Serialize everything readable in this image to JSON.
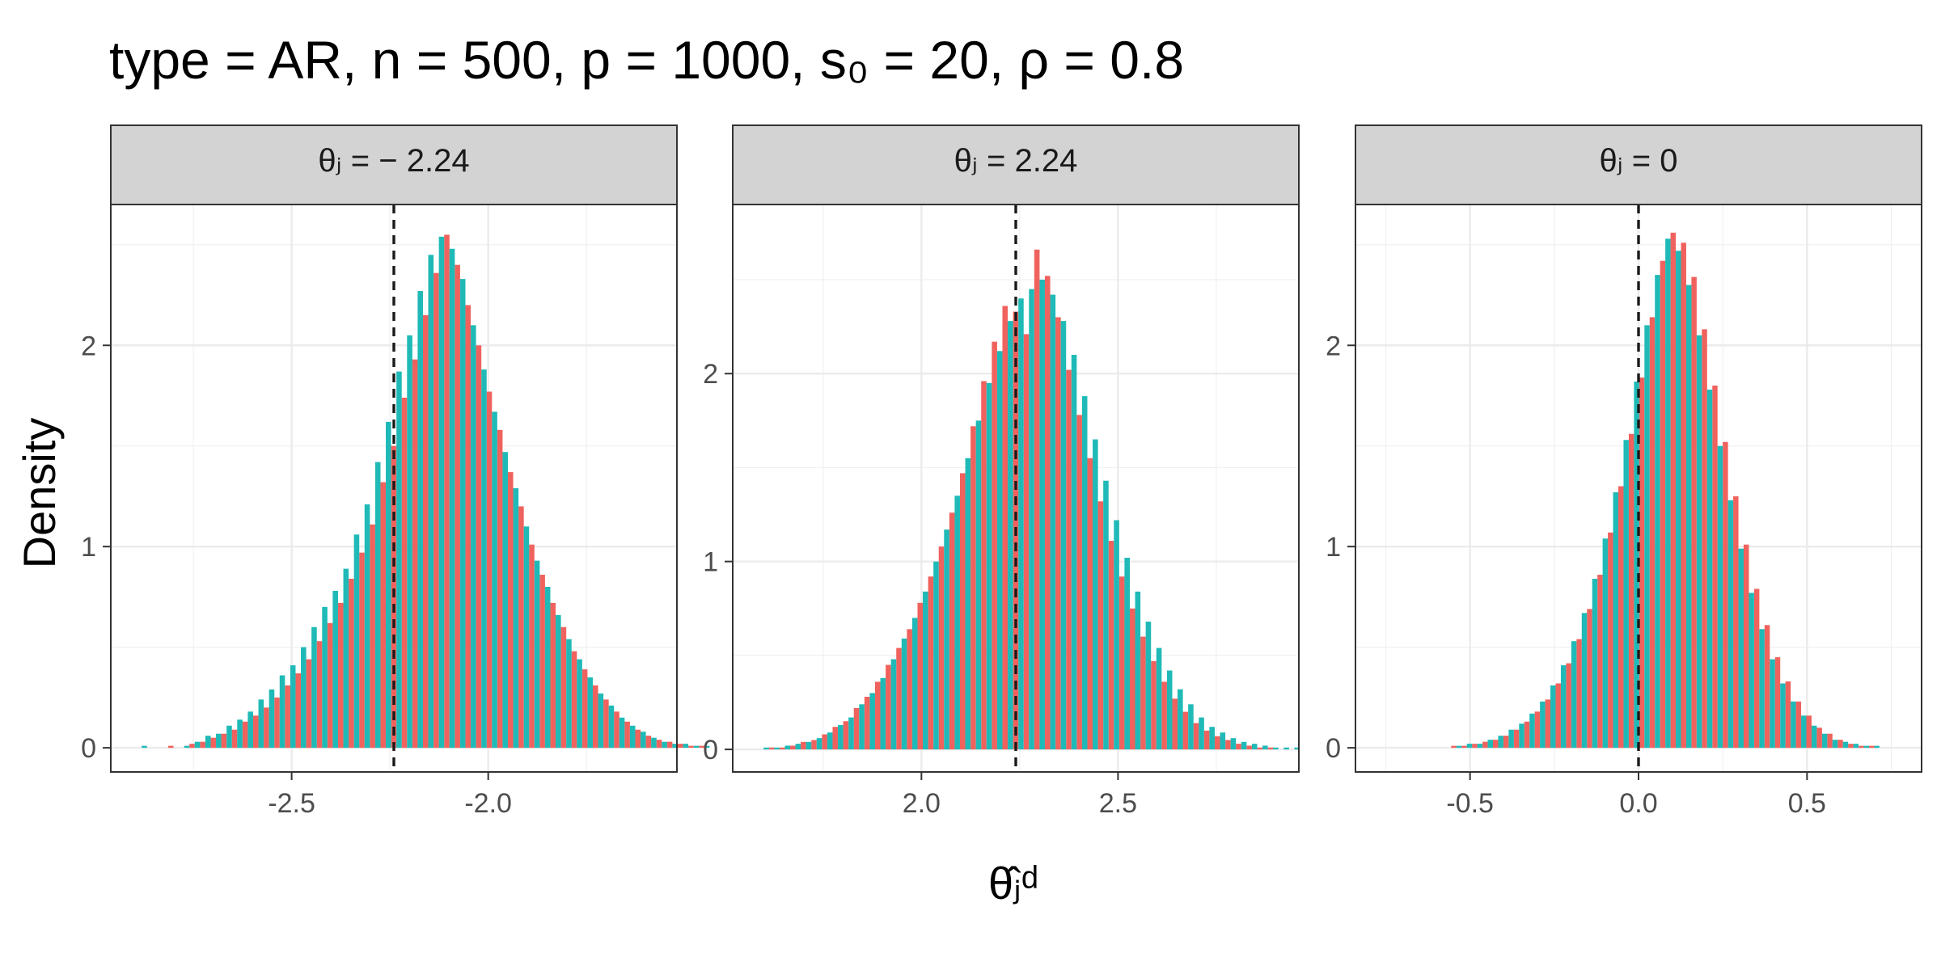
{
  "title": "type = AR, n = 500, p = 1000, s₀ = 20, ρ = 0.8",
  "xlabel": "θ̂ⱼᵈ",
  "ylabel": "Density",
  "colors": {
    "seriesA": "#F0625D",
    "seriesB": "#1FBAB7",
    "reference": "#1a1a1a",
    "strip": "#d3d3d3"
  },
  "chart_data": [
    {
      "type": "bar",
      "panel_title": "θⱼ = − 2.24",
      "reference_line": -2.24,
      "xlim": [
        -2.96,
        -1.52
      ],
      "ylim": [
        -0.12,
        2.7
      ],
      "xticks": [
        -2.5,
        -2.0
      ],
      "xtick_labels": [
        "-2.5",
        "-2.0"
      ],
      "yticks": [
        0,
        1,
        2
      ],
      "ytick_labels": [
        "0",
        "1",
        "2"
      ],
      "bin_width": 0.027,
      "x_start": -2.895,
      "series": [
        {
          "values": [
            0.0,
            0.0,
            0.0,
            0.01,
            0.0,
            0.02,
            0.03,
            0.05,
            0.07,
            0.09,
            0.13,
            0.16,
            0.2,
            0.25,
            0.31,
            0.37,
            0.44,
            0.53,
            0.62,
            0.72,
            0.84,
            0.97,
            1.11,
            1.32,
            1.5,
            1.74,
            1.93,
            2.15,
            2.36,
            2.55,
            2.4,
            2.2,
            2.0,
            1.77,
            1.58,
            1.37,
            1.2,
            1.01,
            0.86,
            0.72,
            0.6,
            0.48,
            0.39,
            0.31,
            0.24,
            0.18,
            0.13,
            0.09,
            0.06,
            0.04,
            0.03,
            0.02,
            0.01,
            0.01,
            0.0
          ]
        },
        {
          "values": [
            0.01,
            0.0,
            0.0,
            0.0,
            0.01,
            0.03,
            0.06,
            0.07,
            0.11,
            0.14,
            0.18,
            0.24,
            0.29,
            0.36,
            0.41,
            0.5,
            0.6,
            0.7,
            0.78,
            0.89,
            1.06,
            1.21,
            1.42,
            1.62,
            1.87,
            2.05,
            2.27,
            2.45,
            2.54,
            2.48,
            2.33,
            2.1,
            1.88,
            1.67,
            1.47,
            1.29,
            1.1,
            0.93,
            0.8,
            0.66,
            0.54,
            0.44,
            0.35,
            0.27,
            0.21,
            0.15,
            0.11,
            0.08,
            0.05,
            0.03,
            0.02,
            0.02,
            0.01,
            0.01,
            0.0
          ]
        }
      ]
    },
    {
      "type": "bar",
      "panel_title": "θⱼ = 2.24",
      "reference_line": 2.24,
      "xlim": [
        1.52,
        2.96
      ],
      "ylim": [
        -0.12,
        2.9
      ],
      "xticks": [
        2.0,
        2.5
      ],
      "xtick_labels": [
        "2.0",
        "2.5"
      ],
      "yticks": [
        0,
        1,
        2
      ],
      "ytick_labels": [
        "0",
        "1",
        "2"
      ],
      "bin_width": 0.027,
      "x_start": 1.585,
      "series": [
        {
          "values": [
            0.0,
            0.01,
            0.01,
            0.02,
            0.04,
            0.05,
            0.08,
            0.12,
            0.15,
            0.22,
            0.28,
            0.36,
            0.45,
            0.54,
            0.64,
            0.78,
            0.92,
            1.08,
            1.26,
            1.47,
            1.72,
            1.96,
            2.17,
            2.36,
            2.33,
            2.21,
            2.66,
            2.52,
            2.3,
            2.02,
            1.78,
            1.55,
            1.32,
            1.11,
            0.92,
            0.75,
            0.6,
            0.47,
            0.36,
            0.27,
            0.2,
            0.14,
            0.1,
            0.07,
            0.05,
            0.03,
            0.02,
            0.01,
            0.01,
            0.0,
            0.0,
            0.0,
            0.0,
            0.0,
            0.0
          ]
        },
        {
          "values": [
            0.01,
            0.01,
            0.02,
            0.03,
            0.04,
            0.06,
            0.09,
            0.13,
            0.17,
            0.24,
            0.3,
            0.38,
            0.48,
            0.59,
            0.7,
            0.84,
            1.0,
            1.17,
            1.35,
            1.55,
            1.75,
            1.95,
            2.12,
            2.28,
            2.4,
            2.45,
            2.5,
            2.42,
            2.28,
            2.1,
            1.88,
            1.65,
            1.43,
            1.22,
            1.02,
            0.84,
            0.68,
            0.54,
            0.42,
            0.32,
            0.24,
            0.17,
            0.12,
            0.09,
            0.06,
            0.04,
            0.03,
            0.02,
            0.01,
            0.01,
            0.01,
            0.0,
            0.0,
            0.0,
            0.0
          ]
        }
      ]
    },
    {
      "type": "bar",
      "panel_title": "θⱼ = 0",
      "reference_line": 0,
      "xlim": [
        -0.84,
        0.84
      ],
      "ylim": [
        -0.12,
        2.7
      ],
      "xticks": [
        -0.5,
        0.0,
        0.5
      ],
      "xtick_labels": [
        "-0.5",
        "0.0",
        "0.5"
      ],
      "yticks": [
        0,
        1,
        2
      ],
      "ytick_labels": [
        "0",
        "1",
        "2"
      ],
      "bin_width": 0.031,
      "x_start": -0.68,
      "series": [
        {
          "values": [
            0.0,
            0.0,
            0.0,
            0.0,
            0.01,
            0.01,
            0.02,
            0.03,
            0.04,
            0.06,
            0.09,
            0.13,
            0.18,
            0.24,
            0.32,
            0.42,
            0.54,
            0.69,
            0.86,
            1.07,
            1.3,
            1.56,
            1.84,
            2.14,
            2.42,
            2.56,
            2.51,
            2.34,
            2.08,
            1.8,
            1.52,
            1.25,
            1.01,
            0.79,
            0.61,
            0.45,
            0.33,
            0.23,
            0.16,
            0.1,
            0.07,
            0.04,
            0.02,
            0.01,
            0.01,
            0.0,
            0.0,
            0.0,
            0.0
          ]
        },
        {
          "values": [
            0.0,
            0.0,
            0.0,
            0.0,
            0.01,
            0.02,
            0.02,
            0.04,
            0.06,
            0.09,
            0.12,
            0.17,
            0.23,
            0.31,
            0.41,
            0.53,
            0.67,
            0.84,
            1.04,
            1.27,
            1.53,
            1.82,
            2.1,
            2.35,
            2.53,
            2.47,
            2.3,
            2.05,
            1.78,
            1.5,
            1.23,
            0.99,
            0.77,
            0.59,
            0.44,
            0.32,
            0.23,
            0.16,
            0.11,
            0.07,
            0.04,
            0.03,
            0.02,
            0.01,
            0.01,
            0.0,
            0.0,
            0.0,
            0.0
          ]
        }
      ]
    }
  ]
}
